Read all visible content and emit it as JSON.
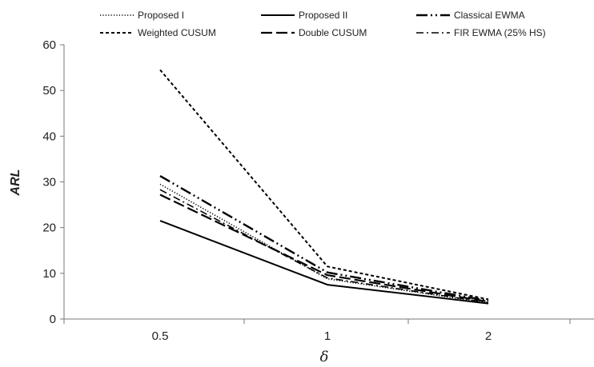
{
  "chart_data": {
    "type": "line",
    "xlabel": "δ",
    "ylabel": "ARL",
    "categories": [
      "0.5",
      "1",
      "2"
    ],
    "ylim": [
      0,
      60
    ],
    "yticks": [
      "0",
      "10",
      "20",
      "30",
      "40",
      "50",
      "60"
    ],
    "grid": false,
    "legend_position": "top",
    "series": [
      {
        "name": "Proposed I",
        "values": [
          29.5,
          8.8,
          3.5
        ],
        "style": "dotted",
        "color": "#000000"
      },
      {
        "name": "Proposed II",
        "values": [
          21.5,
          7.5,
          3.4
        ],
        "style": "solid",
        "color": "#000000"
      },
      {
        "name": "Classical EWMA",
        "values": [
          31.3,
          10.2,
          4.0
        ],
        "style": "longdash-dot-dot",
        "color": "#000000"
      },
      {
        "name": "Weighted CUSUM",
        "values": [
          54.5,
          11.5,
          4.3
        ],
        "style": "dashed",
        "color": "#000000"
      },
      {
        "name": "Double CUSUM",
        "values": [
          27.2,
          9.6,
          3.8
        ],
        "style": "longdash",
        "color": "#000000"
      },
      {
        "name": "FIR EWMA (25% HS)",
        "values": [
          28.3,
          9.0,
          3.6
        ],
        "style": "dash-dot",
        "color": "#000000"
      }
    ]
  }
}
